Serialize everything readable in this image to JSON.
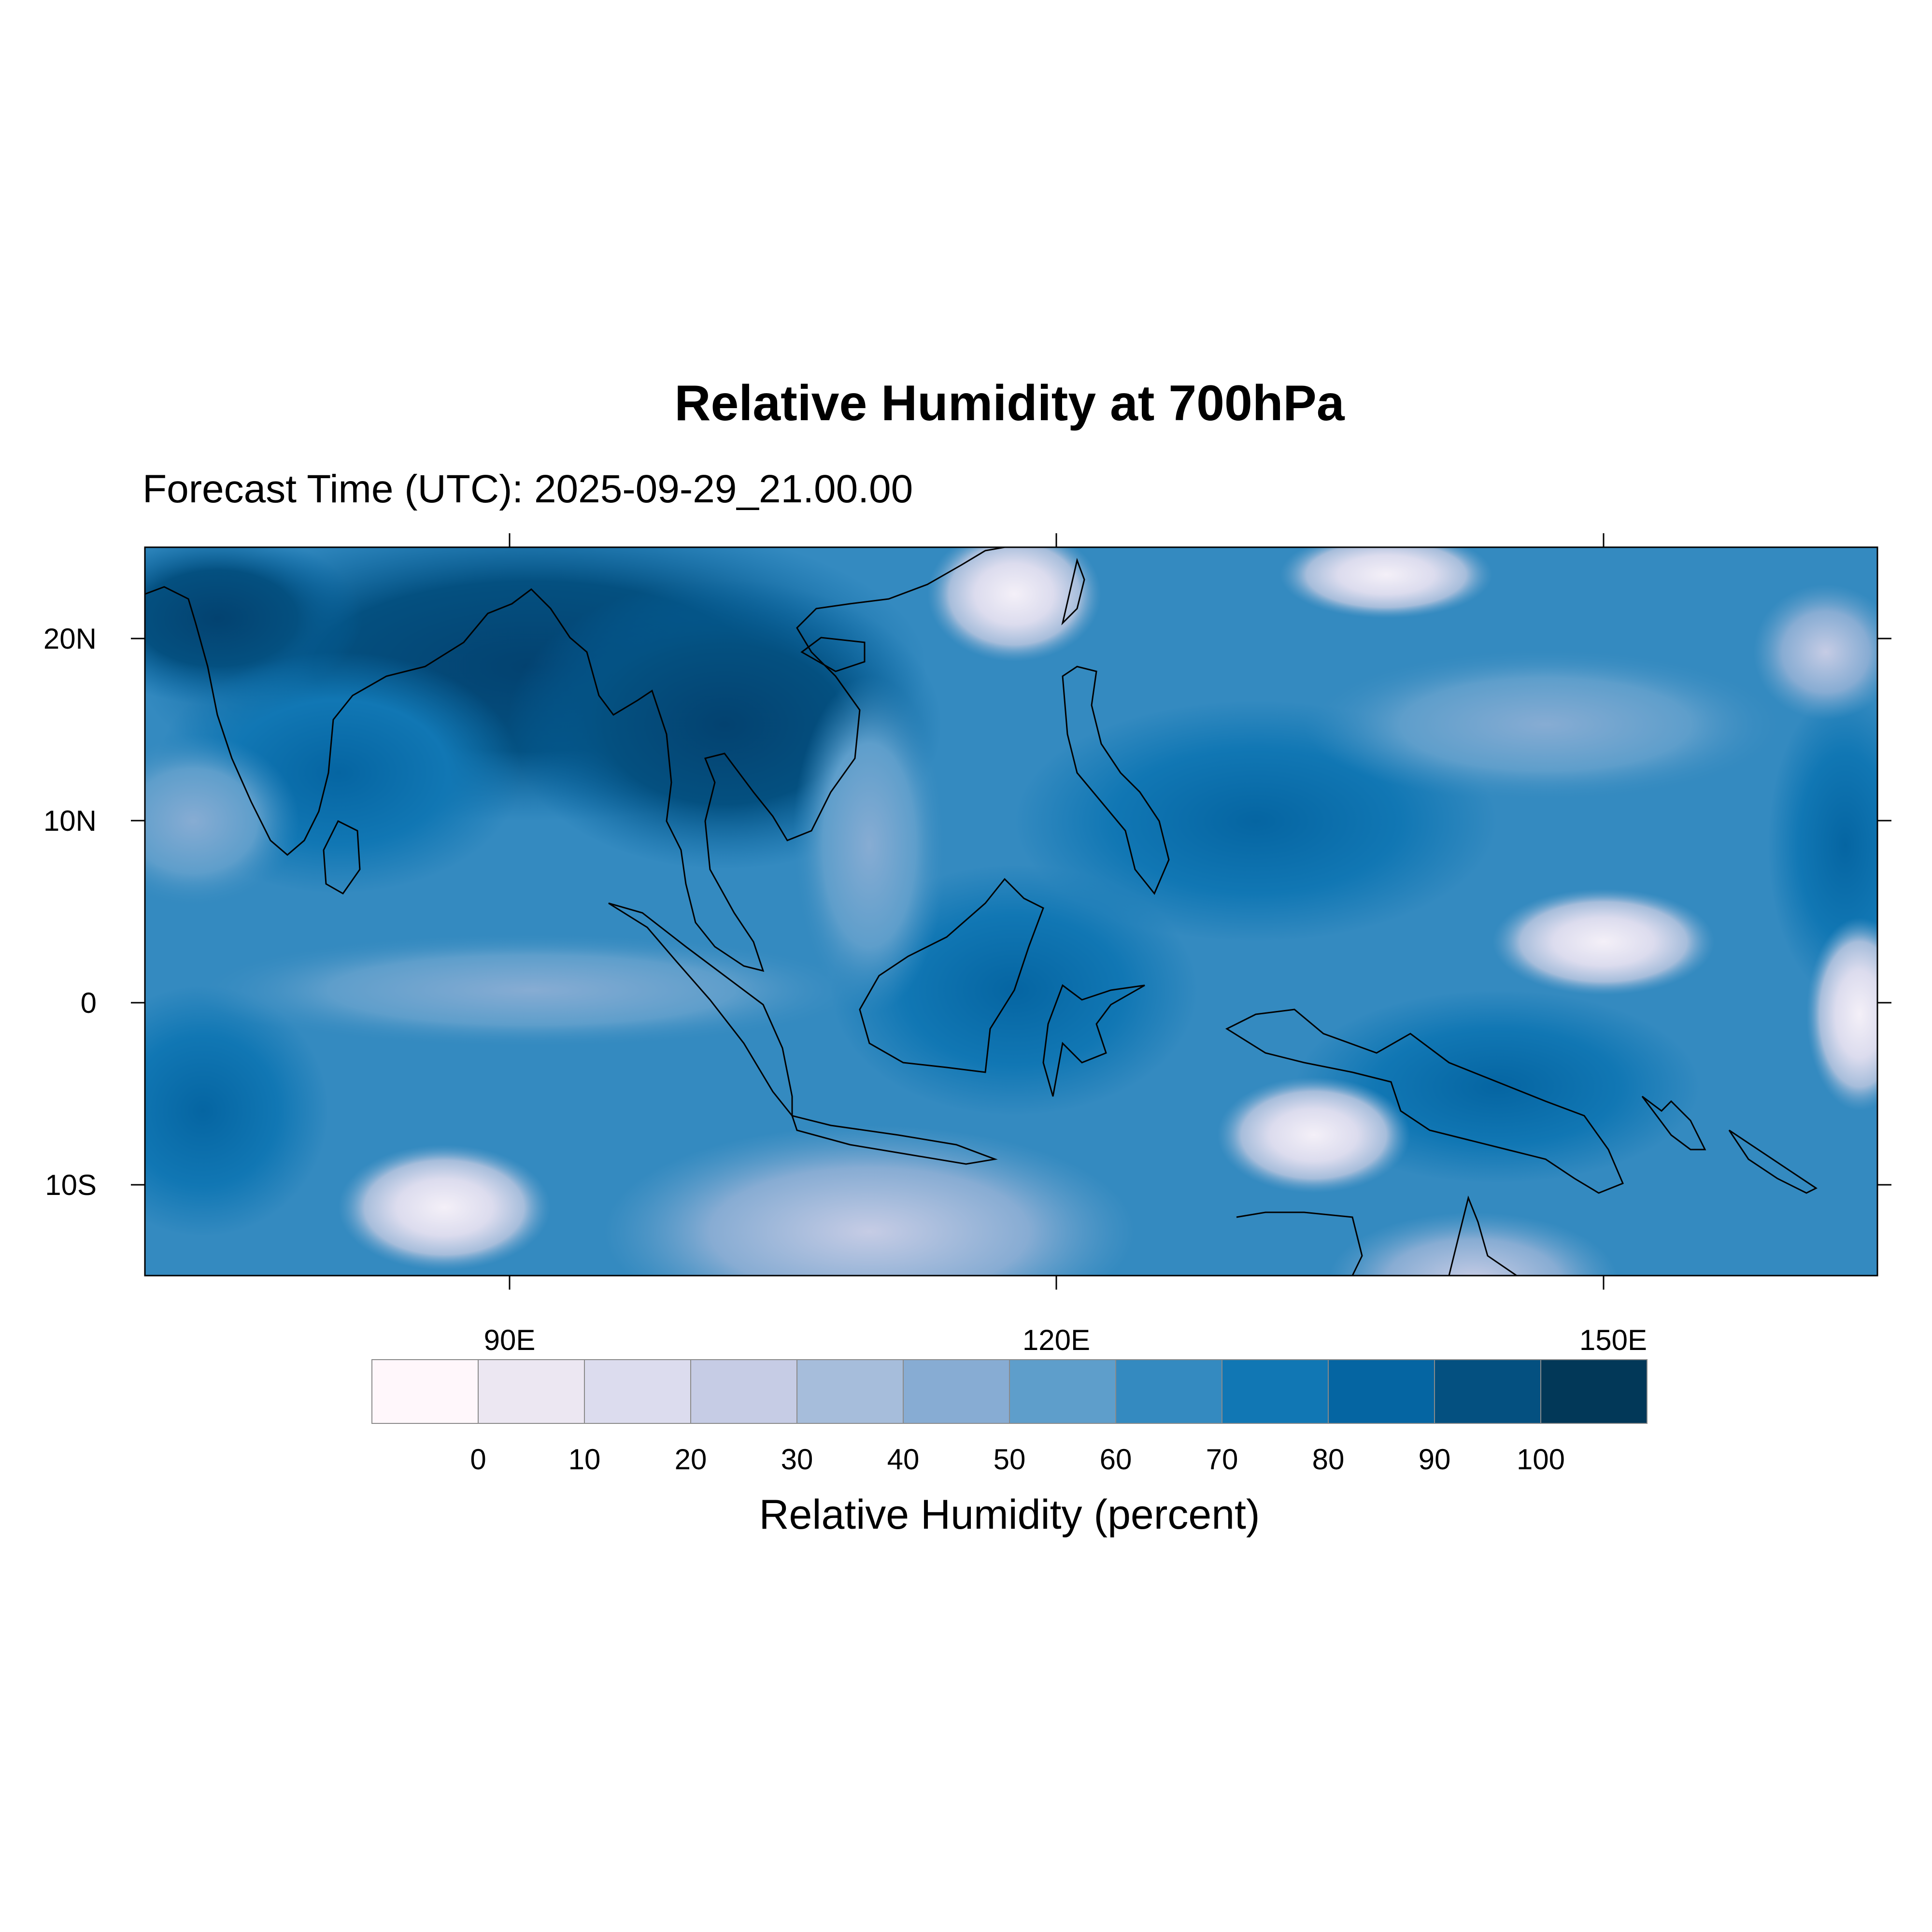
{
  "title": "Relative Humidity at 700hPa",
  "subtitle": "Forecast Time (UTC): 2025-09-29_21.00.00",
  "map": {
    "lon_range": [
      70,
      165
    ],
    "lat_range": [
      -15,
      25
    ],
    "lat_ticks": [
      {
        "value": 20,
        "label": "20N"
      },
      {
        "value": 10,
        "label": "10N"
      },
      {
        "value": 0,
        "label": "0"
      },
      {
        "value": -10,
        "label": "10S"
      }
    ],
    "lon_ticks": [
      {
        "value": 90,
        "label": "90E"
      },
      {
        "value": 120,
        "label": "120E"
      },
      {
        "value": 150,
        "label": "150E"
      }
    ]
  },
  "chart_data": {
    "type": "heatmap",
    "title": "Relative Humidity at 700hPa",
    "subtitle": "Forecast Time (UTC): 2025-09-29_21.00.00",
    "xlim": [
      70,
      165
    ],
    "ylim": [
      -15,
      25
    ],
    "colorbar": {
      "label": "Relative Humidity (percent)",
      "tick_labels": [
        "0",
        "10",
        "20",
        "30",
        "40",
        "50",
        "60",
        "70",
        "80",
        "90",
        "100"
      ],
      "colors": [
        "#fff7fb",
        "#ece7f2",
        "#dcdcee",
        "#c6cce5",
        "#a6bddb",
        "#87acd3",
        "#5e9ecb",
        "#348ac0",
        "#1177b4",
        "#0565a2",
        "#045080",
        "#023858"
      ]
    }
  }
}
